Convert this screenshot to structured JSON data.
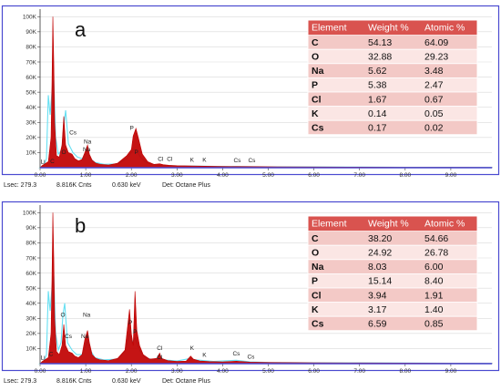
{
  "chart_data": [
    {
      "type": "area",
      "panel_label": "a",
      "y_tick_labels": [
        "100K",
        "90K",
        "80K",
        "70K",
        "60K",
        "50K",
        "40K",
        "30K",
        "20K",
        "10K"
      ],
      "x_tick_labels": [
        "0.00",
        "1.00",
        "2.00",
        "3.00",
        "4.00",
        "5.00",
        "6.00",
        "7.00",
        "8.00",
        "9.00"
      ],
      "xlim": [
        0,
        9.9
      ],
      "ylim": [
        0,
        105000
      ],
      "grid": true,
      "peak_labels": [
        {
          "text": "Li",
          "x": 0.06,
          "y": 2600
        },
        {
          "text": "C",
          "x": 0.27,
          "y": 3000
        },
        {
          "text": "O",
          "x": 0.52,
          "y": 9000
        },
        {
          "text": "Cs",
          "x": 0.72,
          "y": 22000
        },
        {
          "text": "Na",
          "x": 1.04,
          "y": 16000
        },
        {
          "text": "Na",
          "x": 1.02,
          "y": 11000
        },
        {
          "text": "P",
          "x": 2.01,
          "y": 25000
        },
        {
          "text": "P",
          "x": 2.11,
          "y": 9000
        },
        {
          "text": "Cl",
          "x": 2.64,
          "y": 4500
        },
        {
          "text": "Cl",
          "x": 2.84,
          "y": 4500
        },
        {
          "text": "K",
          "x": 3.33,
          "y": 4000
        },
        {
          "text": "K",
          "x": 3.6,
          "y": 4000
        },
        {
          "text": "Cs",
          "x": 4.32,
          "y": 3500
        },
        {
          "text": "Cs",
          "x": 4.64,
          "y": 3500
        }
      ],
      "series": [
        {
          "fill": "#c00000",
          "x": [
            0.0,
            0.05,
            0.1,
            0.18,
            0.24,
            0.26,
            0.28,
            0.3,
            0.32,
            0.36,
            0.42,
            0.48,
            0.52,
            0.56,
            0.62,
            0.7,
            0.76,
            0.84,
            0.92,
            0.98,
            1.04,
            1.08,
            1.14,
            1.22,
            1.32,
            1.5,
            1.7,
            1.9,
            2.0,
            2.04,
            2.1,
            2.16,
            2.24,
            2.36,
            2.5,
            2.62,
            2.7,
            2.82,
            3.0,
            3.3,
            3.6,
            3.9,
            4.3,
            4.7,
            5.2,
            6.0,
            7.0,
            8.0,
            9.0,
            9.9
          ],
          "y": [
            0,
            1500,
            2500,
            4000,
            20000,
            55000,
            100000,
            70000,
            30000,
            8000,
            7000,
            15000,
            34000,
            15000,
            10000,
            9000,
            6000,
            4500,
            5500,
            10000,
            15000,
            9000,
            5000,
            3000,
            2200,
            1800,
            3000,
            8000,
            12000,
            21000,
            26000,
            19000,
            9000,
            4000,
            2200,
            2600,
            2000,
            1600,
            1300,
            1200,
            1000,
            900,
            800,
            700,
            600,
            500,
            400,
            300,
            300,
            200
          ]
        },
        {
          "fill": "#66dff2",
          "x": [
            0.0,
            0.08,
            0.14,
            0.18,
            0.22,
            0.26,
            0.3,
            0.34,
            0.4,
            0.48,
            0.52,
            0.56,
            0.62,
            0.72,
            0.82,
            0.92,
            1.0,
            1.04,
            1.1,
            1.2,
            1.4,
            1.7,
            1.9,
            2.0,
            2.06,
            2.12,
            2.2,
            2.32,
            2.5,
            2.7,
            3.0,
            3.5,
            4.0,
            4.5,
            5.0,
            6.0,
            7.0,
            8.0,
            9.0,
            9.9
          ],
          "y": [
            0,
            1500,
            6000,
            48000,
            35000,
            50000,
            58000,
            20000,
            9000,
            12000,
            28000,
            38000,
            16000,
            10000,
            7000,
            6000,
            9000,
            11000,
            6000,
            3500,
            2200,
            2500,
            6000,
            10000,
            12000,
            11000,
            7000,
            3500,
            2000,
            1500,
            1200,
            1000,
            800,
            700,
            600,
            500,
            400,
            300,
            250,
            200
          ]
        }
      ],
      "table": {
        "headers": [
          "Element",
          "Weight %",
          "Atomic %"
        ],
        "rows": [
          [
            "C",
            "54.13",
            "64.09"
          ],
          [
            "O",
            "32.88",
            "29.23"
          ],
          [
            "Na",
            "5.62",
            "3.48"
          ],
          [
            "P",
            "5.38",
            "2.47"
          ],
          [
            "Cl",
            "1.67",
            "0.67"
          ],
          [
            "K",
            "0.14",
            "0.05"
          ],
          [
            "Cs",
            "0.17",
            "0.02"
          ]
        ]
      },
      "status": {
        "lsec": "Lsec: 279.3",
        "cnts": "8.816K Cnts",
        "kev": "0.630 keV",
        "det": "Det: Octane Plus"
      }
    },
    {
      "type": "area",
      "panel_label": "b",
      "y_tick_labels": [
        "100K",
        "90K",
        "80K",
        "70K",
        "60K",
        "50K",
        "40K",
        "30K",
        "20K",
        "10K"
      ],
      "x_tick_labels": [
        "0.00",
        "1.00",
        "2.00",
        "3.00",
        "4.00",
        "5.00",
        "6.00",
        "7.00",
        "8.00",
        "9.00"
      ],
      "xlim": [
        0,
        9.9
      ],
      "ylim": [
        0,
        105000
      ],
      "grid": true,
      "peak_labels": [
        {
          "text": "Li",
          "x": 0.06,
          "y": 2600
        },
        {
          "text": "C",
          "x": 0.24,
          "y": 5000
        },
        {
          "text": "O",
          "x": 0.5,
          "y": 31000
        },
        {
          "text": "Cs",
          "x": 0.62,
          "y": 17000
        },
        {
          "text": "Na",
          "x": 1.02,
          "y": 31000
        },
        {
          "text": "Na",
          "x": 0.98,
          "y": 17000
        },
        {
          "text": "P",
          "x": 1.98,
          "y": 26000
        },
        {
          "text": "P",
          "x": 2.08,
          "y": 20000
        },
        {
          "text": "Cl",
          "x": 2.62,
          "y": 9000
        },
        {
          "text": "Cl",
          "x": 2.62,
          "y": 3000
        },
        {
          "text": "K",
          "x": 3.33,
          "y": 9000
        },
        {
          "text": "K",
          "x": 3.6,
          "y": 4500
        },
        {
          "text": "Cs",
          "x": 4.3,
          "y": 5500
        },
        {
          "text": "Cs",
          "x": 4.62,
          "y": 3200
        }
      ],
      "series": [
        {
          "fill": "#c00000",
          "x": [
            0.0,
            0.05,
            0.1,
            0.18,
            0.24,
            0.26,
            0.28,
            0.3,
            0.32,
            0.36,
            0.42,
            0.48,
            0.52,
            0.56,
            0.62,
            0.7,
            0.76,
            0.84,
            0.92,
            0.98,
            1.04,
            1.08,
            1.14,
            1.22,
            1.32,
            1.5,
            1.7,
            1.86,
            1.96,
            2.0,
            2.04,
            2.08,
            2.12,
            2.18,
            2.26,
            2.4,
            2.56,
            2.62,
            2.66,
            2.8,
            3.0,
            3.2,
            3.3,
            3.36,
            3.5,
            3.7,
            4.0,
            4.3,
            4.6,
            5.0,
            6.0,
            7.0,
            8.0,
            9.0,
            9.9
          ],
          "y": [
            0,
            1500,
            2500,
            4000,
            20000,
            55000,
            100000,
            70000,
            30000,
            8000,
            6000,
            12000,
            26000,
            12000,
            8000,
            7000,
            5000,
            4000,
            6000,
            16000,
            22000,
            14000,
            6000,
            3500,
            2500,
            2000,
            3500,
            9000,
            36000,
            20000,
            12000,
            48000,
            22000,
            12000,
            6000,
            3000,
            3500,
            7000,
            3500,
            2000,
            1500,
            1700,
            5000,
            3000,
            1800,
            1400,
            1200,
            1600,
            1000,
            800,
            600,
            500,
            400,
            300,
            200
          ]
        },
        {
          "fill": "#66dff2",
          "x": [
            0.0,
            0.08,
            0.14,
            0.18,
            0.22,
            0.26,
            0.3,
            0.34,
            0.4,
            0.46,
            0.5,
            0.54,
            0.6,
            0.7,
            0.8,
            0.92,
            1.0,
            1.04,
            1.1,
            1.2,
            1.4,
            1.7,
            1.86,
            1.96,
            2.02,
            2.08,
            2.14,
            2.2,
            2.3,
            2.5,
            2.62,
            2.7,
            3.0,
            3.3,
            3.4,
            3.8,
            4.3,
            4.6,
            5.0,
            6.0,
            7.0,
            8.0,
            9.0,
            9.9
          ],
          "y": [
            0,
            1500,
            6000,
            48000,
            35000,
            50000,
            58000,
            20000,
            9000,
            14000,
            32000,
            40000,
            14000,
            9000,
            6000,
            6000,
            12000,
            15000,
            9000,
            4000,
            2500,
            3000,
            8000,
            20000,
            14000,
            17000,
            12000,
            8000,
            4000,
            2500,
            5000,
            2500,
            1800,
            3500,
            2500,
            1500,
            2200,
            1200,
            800,
            600,
            500,
            400,
            300,
            200
          ]
        }
      ],
      "table": {
        "headers": [
          "Element",
          "Weight %",
          "Atomic %"
        ],
        "rows": [
          [
            "C",
            "38.20",
            "54.66"
          ],
          [
            "O",
            "24.92",
            "26.78"
          ],
          [
            "Na",
            "8.03",
            "6.00"
          ],
          [
            "P",
            "15.14",
            "8.40"
          ],
          [
            "Cl",
            "3.94",
            "1.91"
          ],
          [
            "K",
            "3.17",
            "1.40"
          ],
          [
            "Cs",
            "6.59",
            "0.85"
          ]
        ]
      },
      "status": {
        "lsec": "Lsec: 279.3",
        "cnts": "8.816K Cnts",
        "kev": "0.630 keV",
        "det": "Det: Octane Plus"
      }
    }
  ]
}
